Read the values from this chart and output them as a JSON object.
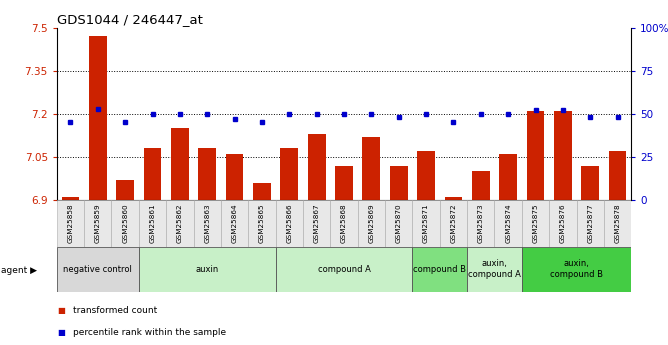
{
  "title": "GDS1044 / 246447_at",
  "samples": [
    "GSM25858",
    "GSM25859",
    "GSM25860",
    "GSM25861",
    "GSM25862",
    "GSM25863",
    "GSM25864",
    "GSM25865",
    "GSM25866",
    "GSM25867",
    "GSM25868",
    "GSM25869",
    "GSM25870",
    "GSM25871",
    "GSM25872",
    "GSM25873",
    "GSM25874",
    "GSM25875",
    "GSM25876",
    "GSM25877",
    "GSM25878"
  ],
  "bar_values": [
    6.91,
    7.47,
    6.97,
    7.08,
    7.15,
    7.08,
    7.06,
    6.96,
    7.08,
    7.13,
    7.02,
    7.12,
    7.02,
    7.07,
    6.91,
    7.0,
    7.06,
    7.21,
    7.21,
    7.02,
    7.07
  ],
  "dot_values": [
    45,
    53,
    45,
    50,
    50,
    50,
    47,
    45,
    50,
    50,
    50,
    50,
    48,
    50,
    45,
    50,
    50,
    52,
    52,
    48,
    48
  ],
  "bar_color": "#cc2200",
  "dot_color": "#0000cc",
  "ylim_left": [
    6.9,
    7.5
  ],
  "ylim_right": [
    0,
    100
  ],
  "yticks_left": [
    6.9,
    7.05,
    7.2,
    7.35,
    7.5
  ],
  "yticks_right": [
    0,
    25,
    50,
    75,
    100
  ],
  "ytick_labels_right": [
    "0",
    "25",
    "50",
    "75",
    "100%"
  ],
  "grid_values": [
    7.05,
    7.2,
    7.35
  ],
  "agent_groups": [
    {
      "label": "negative control",
      "start": 0,
      "end": 3,
      "color": "#d8d8d8"
    },
    {
      "label": "auxin",
      "start": 3,
      "end": 8,
      "color": "#c8f0c8"
    },
    {
      "label": "compound A",
      "start": 8,
      "end": 13,
      "color": "#c8f0c8"
    },
    {
      "label": "compound B",
      "start": 13,
      "end": 15,
      "color": "#80e080"
    },
    {
      "label": "auxin,\ncompound A",
      "start": 15,
      "end": 17,
      "color": "#c8f0c8"
    },
    {
      "label": "auxin,\ncompound B",
      "start": 17,
      "end": 21,
      "color": "#44cc44"
    }
  ],
  "legend_items": [
    {
      "label": "transformed count",
      "color": "#cc2200"
    },
    {
      "label": "percentile rank within the sample",
      "color": "#0000cc"
    }
  ],
  "agent_label": "agent ▶"
}
